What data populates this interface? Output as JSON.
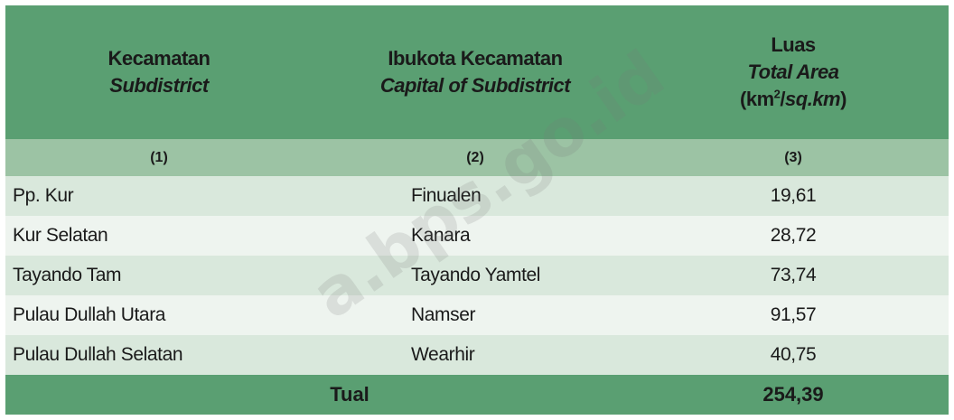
{
  "header": {
    "col1": {
      "title": "Kecamatan",
      "subtitle": "Subdistrict"
    },
    "col2": {
      "title": "Ibukota Kecamatan",
      "subtitle": "Capital of Subdistrict"
    },
    "col3": {
      "title": "Luas",
      "subtitle": "Total Area",
      "unit_prefix": "(km",
      "unit_sup": "2",
      "unit_suffix": "/",
      "unit_italic": "sq.km",
      "unit_close": ")"
    }
  },
  "column_numbers": [
    "(1)",
    "(2)",
    "(3)"
  ],
  "rows": [
    {
      "subdistrict": "Pp. Kur",
      "capital": "Finualen",
      "area": "19,61"
    },
    {
      "subdistrict": "Kur Selatan",
      "capital": "Kanara",
      "area": "28,72"
    },
    {
      "subdistrict": "Tayando Tam",
      "capital": "Tayando Yamtel",
      "area": "73,74"
    },
    {
      "subdistrict": "Pulau Dullah Utara",
      "capital": "Namser",
      "area": "91,57"
    },
    {
      "subdistrict": "Pulau Dullah Selatan",
      "capital": "Wearhir",
      "area": "40,75"
    }
  ],
  "total": {
    "label": "Tual",
    "area": "254,39"
  },
  "watermark": "a.bps.go.id",
  "colors": {
    "header": "#5a9f72",
    "colnum": "#9cc3a4",
    "row_odd": "#d9e8dc",
    "row_even": "#eef4ef"
  }
}
